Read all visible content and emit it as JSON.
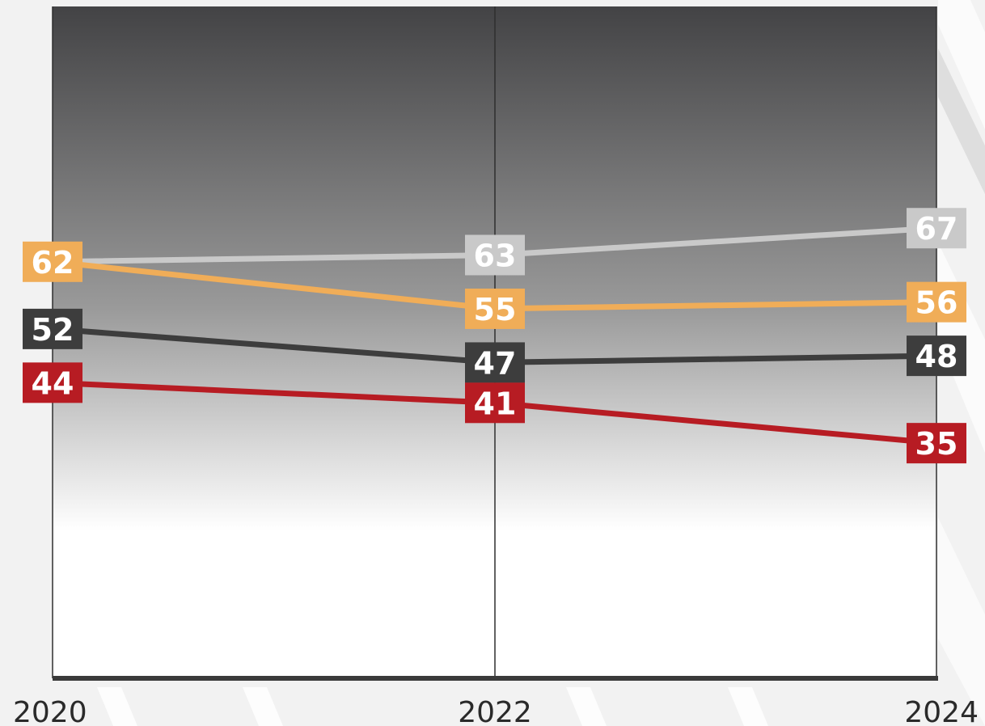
{
  "chart_data": {
    "type": "line",
    "x": [
      "2020",
      "2022",
      "2024"
    ],
    "ylim": [
      0,
      100
    ],
    "grid": "vertical lines at each x tick",
    "series": [
      {
        "values": [
          62,
          63,
          67
        ],
        "color": "#c9c9c9"
      },
      {
        "values": [
          62,
          55,
          56
        ],
        "color": "#f0ad58"
      },
      {
        "values": [
          52,
          47,
          48
        ],
        "color": "#3d3d3d"
      },
      {
        "values": [
          44,
          41,
          35
        ],
        "color": "#b71c23"
      }
    ]
  },
  "colors": {
    "plot_gradient_top": "#434345",
    "plot_gradient_bottom": "#ffffff",
    "axis": "#3a3a3a",
    "page_background": "#f2f2f2"
  }
}
